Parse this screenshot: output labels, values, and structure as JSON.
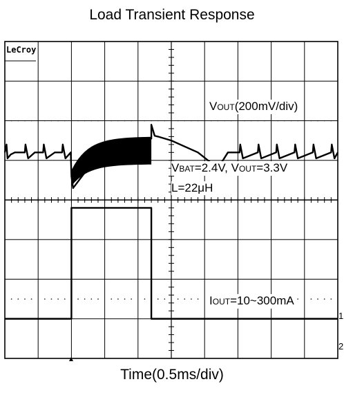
{
  "title": "Load Transient Response",
  "xlabel": "Time(0.5ms/div)",
  "brand": "LeCroy",
  "annotations": {
    "vout_scale": {
      "main": "V",
      "sub": "OUT",
      "rest": "(200mV/div)"
    },
    "conditions": {
      "v1": "V",
      "s1": "BAT",
      "r1": "=2.4V, ",
      "v2": "V",
      "s2": "OUT",
      "r2": "=3.3V"
    },
    "inductor": "L=22μH",
    "iout": {
      "main": "I",
      "sub": "OUT",
      "rest": "=10~300mA"
    }
  },
  "channel_markers": [
    "1",
    "2"
  ],
  "colors": {
    "trace": "#000000",
    "grid": "#000000",
    "background": "#ffffff"
  },
  "chart_data": {
    "type": "line",
    "title": "Load Transient Response",
    "xlabel": "Time(0.5ms/div)",
    "ylabel": "",
    "x_unit": "div",
    "y_unit": "div",
    "xlim": [
      0,
      10
    ],
    "ylim": [
      0,
      8
    ],
    "grid": true,
    "series": [
      {
        "name": "VOUT",
        "scale": "200mV/div",
        "x": [
          0,
          0.05,
          0.08,
          0.18,
          0.3,
          0.6,
          0.62,
          0.7,
          0.9,
          1.15,
          1.17,
          1.25,
          1.5,
          1.72,
          1.74,
          1.82,
          1.98,
          2.0,
          2.05,
          2.5,
          3.0,
          3.5,
          4.4,
          4.4,
          4.5,
          4.6,
          5.0,
          5.8,
          6.4,
          6.7,
          7.05,
          7.07,
          7.15,
          7.6,
          7.62,
          7.7,
          8.15,
          8.17,
          8.25,
          8.7,
          8.72,
          8.8,
          9.25,
          9.27,
          9.35,
          9.8,
          9.82,
          9.9,
          10
        ],
        "y": [
          5.2,
          5.4,
          5.05,
          5.15,
          5.2,
          5.2,
          5.4,
          5.05,
          5.2,
          5.2,
          5.4,
          5.05,
          5.2,
          5.2,
          5.4,
          5.05,
          5.2,
          4.6,
          4.3,
          4.8,
          5.15,
          5.4,
          5.55,
          5.9,
          5.62,
          5.6,
          5.5,
          5.2,
          4.8,
          5.2,
          5.2,
          5.4,
          5.05,
          5.2,
          5.4,
          5.05,
          5.2,
          5.4,
          5.05,
          5.2,
          5.4,
          5.05,
          5.2,
          5.4,
          5.05,
          5.2,
          5.4,
          5.05,
          5.2
        ],
        "notes": "ripple band approx 0.6 div wide during 2.0-4.4 div (300mA load)"
      },
      {
        "name": "IOUT",
        "scale": "10~300mA",
        "x": [
          0,
          2.0,
          2.0,
          4.4,
          4.4,
          10
        ],
        "y": [
          1.0,
          1.0,
          3.8,
          3.8,
          1.0,
          1.0
        ]
      }
    ]
  }
}
